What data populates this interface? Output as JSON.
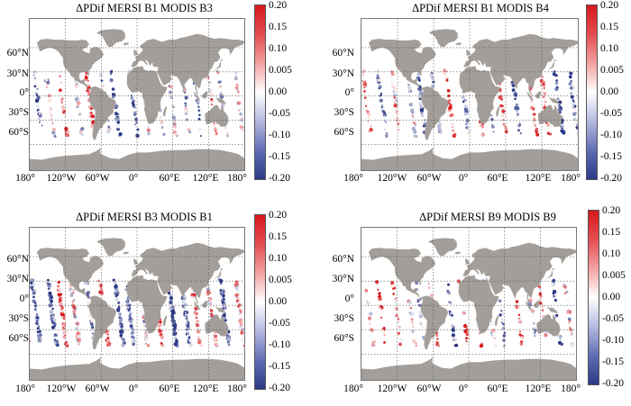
{
  "colors": {
    "land": "#a39e99",
    "grid": "#555555",
    "high": "#d7191c",
    "low": "#2c3986"
  },
  "panels": [
    {
      "title": "ΔPDif MERSI B1 MODIS B3",
      "lat_labels": [
        "60°N",
        "30°N",
        "0°",
        "30°S",
        "60°S"
      ],
      "lon_labels": [
        "180°",
        "120°W",
        "60°W",
        "0°",
        "60°E",
        "120°E",
        "180°"
      ],
      "colorbar_ticks": [
        "0.20",
        "0.15",
        "0.10",
        "0.005",
        "0.00",
        "-0.05",
        "-0.10",
        "-0.15",
        "-0.20"
      ],
      "density": 1.0
    },
    {
      "title": "ΔPDif MERSI B1 MODIS B4",
      "lat_labels": [
        "60°N",
        "30°N",
        "0°",
        "30°S",
        "60°S"
      ],
      "lon_labels": [
        "180°",
        "120°W",
        "60°W",
        "0°",
        "60°E",
        "120°E",
        "180°"
      ],
      "colorbar_ticks": [
        "0.20",
        "0.15",
        "0.10",
        "0.005",
        "0.00",
        "-0.05",
        "-0.10",
        "-0.15",
        "-0.20"
      ],
      "density": 1.3
    },
    {
      "title": "ΔPDif MERSI B3 MODIS B1",
      "lat_labels": [
        "60°N",
        "30°N",
        "0°",
        "30°S",
        "60°S"
      ],
      "lon_labels": [
        "180°",
        "120°W",
        "60°W",
        "0°",
        "60°E",
        "120°E",
        "180°"
      ],
      "colorbar_ticks": [
        "0.20",
        "0.15",
        "0.10",
        "0.005",
        "0.00",
        "-0.05",
        "-0.10",
        "-0.15",
        "-0.20"
      ],
      "density": 2.0
    },
    {
      "title": "ΔPDif MERSI B9 MODIS B9",
      "lat_labels": [
        "60°N",
        "30°N",
        "0°",
        "30°S",
        "60°S"
      ],
      "lon_labels": [
        "180°",
        "120°W",
        "60°W",
        "0°",
        "60°E",
        "120°E",
        "180°"
      ],
      "colorbar_ticks": [
        "0.20",
        "0.15",
        "0.10",
        "0.005",
        "0.00",
        "-0.05",
        "-0.10",
        "-0.15",
        "-0.20"
      ],
      "density": 0.8
    }
  ]
}
